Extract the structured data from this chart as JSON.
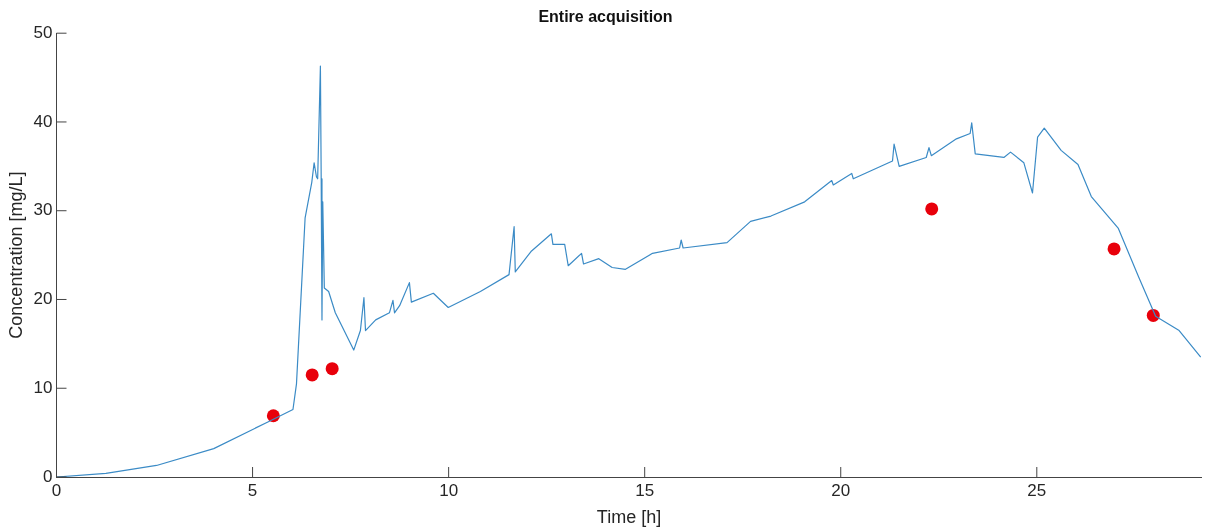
{
  "chart_data": {
    "type": "line",
    "title": "Entire acquisition",
    "xlabel": "Time [h]",
    "ylabel": "Concentration [mg/L]",
    "xlim": [
      0,
      29.2
    ],
    "ylim": [
      0,
      50
    ],
    "xticks": [
      0,
      5,
      10,
      15,
      20,
      25
    ],
    "yticks": [
      0,
      10,
      20,
      30,
      40,
      50
    ],
    "grid": false,
    "legend": false,
    "series": [
      {
        "color": "#3b8bc6",
        "marker": "none",
        "line_style": "solid",
        "x": [
          0,
          1.26,
          2.55,
          4.01,
          5.39,
          6.03,
          6.12,
          6.34,
          6.51,
          6.57,
          6.63,
          6.66,
          6.73,
          6.75,
          6.77,
          6.79,
          6.83,
          6.94,
          7.11,
          7.58,
          7.75,
          7.84,
          7.88,
          8.14,
          8.49,
          8.58,
          8.62,
          8.75,
          9.0,
          9.05,
          9.61,
          9.99,
          10.81,
          11.54,
          11.67,
          11.7,
          12.1,
          12.62,
          12.66,
          12.96,
          13.05,
          13.39,
          13.44,
          13.83,
          14.17,
          14.51,
          15.2,
          15.89,
          15.93,
          15.98,
          17.1,
          17.7,
          18.22,
          19.08,
          19.77,
          19.81,
          20.28,
          20.32,
          21.32,
          21.36,
          21.49,
          22.18,
          22.25,
          22.31,
          22.95,
          23.3,
          23.34,
          23.43,
          24.16,
          24.33,
          24.67,
          24.89,
          25.02,
          25.19,
          25.62,
          26.05,
          26.39,
          27.08,
          27.6,
          28.03,
          28.63,
          29.18
        ],
        "values": [
          0,
          0.4,
          1.3,
          3.2,
          6.2,
          7.6,
          10.5,
          29.2,
          33.2,
          35.4,
          33.8,
          33.6,
          46.3,
          33.6,
          17.7,
          31.0,
          21.3,
          20.9,
          18.5,
          14.3,
          16.5,
          20.2,
          16.5,
          17.7,
          18.5,
          19.9,
          18.5,
          19.3,
          21.9,
          19.7,
          20.7,
          19.1,
          20.9,
          22.8,
          28.2,
          23.1,
          25.4,
          27.4,
          26.2,
          26.2,
          23.8,
          25.2,
          24.0,
          24.6,
          23.6,
          23.4,
          25.2,
          25.8,
          26.7,
          25.8,
          26.4,
          28.8,
          29.4,
          31.0,
          33.4,
          32.9,
          34.2,
          33.6,
          35.6,
          37.5,
          35.0,
          36.0,
          37.1,
          36.2,
          38.1,
          38.7,
          39.9,
          36.4,
          36.0,
          36.6,
          35.4,
          32.0,
          38.3,
          39.3,
          36.8,
          35.2,
          31.6,
          28.0,
          22.5,
          18.1,
          16.5,
          13.5
        ]
      },
      {
        "type": "scatter",
        "color": "#e8000b",
        "marker": "circle",
        "x": [
          5.53,
          6.52,
          7.03,
          22.32,
          26.97,
          27.97
        ],
        "values": [
          6.9,
          11.5,
          12.2,
          30.2,
          25.7,
          18.2
        ]
      }
    ]
  }
}
